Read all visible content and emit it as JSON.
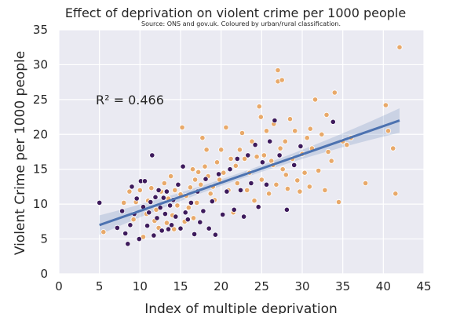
{
  "chart_data": {
    "type": "scatter",
    "title": "Effect of deprivation on violent crime per 1000 people",
    "subtitle": "Source: ONS and gov.uk. Coloured by urban/rural classification.",
    "xlabel": "Index of multiple deprivation",
    "ylabel": "Violent Crime per 1000 people",
    "annotation": "R² = 0.466",
    "xlim": [
      0,
      45
    ],
    "ylim": [
      0,
      35
    ],
    "xticks": [
      "0",
      "5",
      "10",
      "15",
      "20",
      "25",
      "30",
      "35",
      "40",
      "45"
    ],
    "yticks": [
      "0",
      "5",
      "10",
      "15",
      "20",
      "25",
      "30",
      "35"
    ],
    "grid": true,
    "regression": {
      "x": [
        5,
        42
      ],
      "y": [
        7.0,
        22.0
      ]
    },
    "colors": {
      "background": "#eaeaf2",
      "grid": "#ffffff",
      "regression_line": "#4c72b0",
      "confidence_band": "#4c72b0",
      "group_a": "#e8a96a",
      "group_b": "#3d1a5c",
      "marker_edge": "#ffffff"
    },
    "series": [
      {
        "color": "#e8a96a",
        "points": [
          [
            5.5,
            6.0
          ],
          [
            8.0,
            10.2
          ],
          [
            8.7,
            11.8
          ],
          [
            9.2,
            7.8
          ],
          [
            9.5,
            10.3
          ],
          [
            10.0,
            12.0
          ],
          [
            10.4,
            5.3
          ],
          [
            10.8,
            8.6
          ],
          [
            11.0,
            10.5
          ],
          [
            11.4,
            12.3
          ],
          [
            11.8,
            7.6
          ],
          [
            12.0,
            9.2
          ],
          [
            12.3,
            6.6
          ],
          [
            12.6,
            11.8
          ],
          [
            13.0,
            13.0
          ],
          [
            13.3,
            7.3
          ],
          [
            13.5,
            10.8
          ],
          [
            13.8,
            14.0
          ],
          [
            14.0,
            8.4
          ],
          [
            14.3,
            12.0
          ],
          [
            14.6,
            9.8
          ],
          [
            15.0,
            11.4
          ],
          [
            15.2,
            21.0
          ],
          [
            15.5,
            7.5
          ],
          [
            15.7,
            11.2
          ],
          [
            16.0,
            9.5
          ],
          [
            16.2,
            12.4
          ],
          [
            16.5,
            15.0
          ],
          [
            16.8,
            13.5
          ],
          [
            17.0,
            10.2
          ],
          [
            17.2,
            14.6
          ],
          [
            17.5,
            12.8
          ],
          [
            17.7,
            19.5
          ],
          [
            18.0,
            15.4
          ],
          [
            18.2,
            17.8
          ],
          [
            18.4,
            14.0
          ],
          [
            18.7,
            11.5
          ],
          [
            19.0,
            12.5
          ],
          [
            19.2,
            10.6
          ],
          [
            19.5,
            16.0
          ],
          [
            19.8,
            13.5
          ],
          [
            20.0,
            17.8
          ],
          [
            20.3,
            14.5
          ],
          [
            20.6,
            21.0
          ],
          [
            20.9,
            12.0
          ],
          [
            21.2,
            16.5
          ],
          [
            21.5,
            8.8
          ],
          [
            21.8,
            15.5
          ],
          [
            22.0,
            13.0
          ],
          [
            22.3,
            17.8
          ],
          [
            22.6,
            20.2
          ],
          [
            22.9,
            16.5
          ],
          [
            23.2,
            12.0
          ],
          [
            23.5,
            14.5
          ],
          [
            23.8,
            19.0
          ],
          [
            24.1,
            10.5
          ],
          [
            24.4,
            16.8
          ],
          [
            24.7,
            24.0
          ],
          [
            25.0,
            13.5
          ],
          [
            25.3,
            17.0
          ],
          [
            25.6,
            20.5
          ],
          [
            25.9,
            11.5
          ],
          [
            26.2,
            16.2
          ],
          [
            26.5,
            21.5
          ],
          [
            26.8,
            12.8
          ],
          [
            27.0,
            29.2
          ],
          [
            27.0,
            27.6
          ],
          [
            27.5,
            27.8
          ],
          [
            27.3,
            18.0
          ],
          [
            27.6,
            15.0
          ],
          [
            27.9,
            19.0
          ],
          [
            28.2,
            12.2
          ],
          [
            28.5,
            22.2
          ],
          [
            28.8,
            16.5
          ],
          [
            29.1,
            20.5
          ],
          [
            29.4,
            13.4
          ],
          [
            29.7,
            11.8
          ],
          [
            30.0,
            17.2
          ],
          [
            30.3,
            14.5
          ],
          [
            30.6,
            19.5
          ],
          [
            30.9,
            12.5
          ],
          [
            31.2,
            18.0
          ],
          [
            31.6,
            25.0
          ],
          [
            32.0,
            14.8
          ],
          [
            32.4,
            20.0
          ],
          [
            32.8,
            12.0
          ],
          [
            33.2,
            17.5
          ],
          [
            33.6,
            16.2
          ],
          [
            34.0,
            26.0
          ],
          [
            34.5,
            10.3
          ],
          [
            35.0,
            19.0
          ],
          [
            35.5,
            18.5
          ],
          [
            36.0,
            19.5
          ],
          [
            37.8,
            13.0
          ],
          [
            40.3,
            24.2
          ],
          [
            40.6,
            20.5
          ],
          [
            41.2,
            18.0
          ],
          [
            41.5,
            11.5
          ],
          [
            42.0,
            32.5
          ],
          [
            14.2,
            6.4
          ],
          [
            16.6,
            8.0
          ],
          [
            24.9,
            22.5
          ],
          [
            26.4,
            15.6
          ],
          [
            28.0,
            14.2
          ],
          [
            31.0,
            20.8
          ],
          [
            33.0,
            22.8
          ]
        ]
      },
      {
        "color": "#3d1a5c",
        "points": [
          [
            5.0,
            10.2
          ],
          [
            7.2,
            6.6
          ],
          [
            7.8,
            9.0
          ],
          [
            8.2,
            5.8
          ],
          [
            8.5,
            4.3
          ],
          [
            8.8,
            7.0
          ],
          [
            9.0,
            12.5
          ],
          [
            9.3,
            8.6
          ],
          [
            9.6,
            10.8
          ],
          [
            9.9,
            5.0
          ],
          [
            10.1,
            13.3
          ],
          [
            10.4,
            9.6
          ],
          [
            10.6,
            13.3
          ],
          [
            10.9,
            6.9
          ],
          [
            11.1,
            8.8
          ],
          [
            11.3,
            10.3
          ],
          [
            11.5,
            17.0
          ],
          [
            11.7,
            5.5
          ],
          [
            11.9,
            11.0
          ],
          [
            12.1,
            8.0
          ],
          [
            12.3,
            12.0
          ],
          [
            12.5,
            9.5
          ],
          [
            12.7,
            6.2
          ],
          [
            12.9,
            10.9
          ],
          [
            13.1,
            8.6
          ],
          [
            13.3,
            11.8
          ],
          [
            13.5,
            6.4
          ],
          [
            13.7,
            9.8
          ],
          [
            13.9,
            7.0
          ],
          [
            14.1,
            10.6
          ],
          [
            14.4,
            8.2
          ],
          [
            14.7,
            12.8
          ],
          [
            15.0,
            6.5
          ],
          [
            15.3,
            15.4
          ],
          [
            15.6,
            8.8
          ],
          [
            15.9,
            7.8
          ],
          [
            16.3,
            10.2
          ],
          [
            16.7,
            5.7
          ],
          [
            17.1,
            11.8
          ],
          [
            17.4,
            7.4
          ],
          [
            17.8,
            9.0
          ],
          [
            18.1,
            13.6
          ],
          [
            18.5,
            6.5
          ],
          [
            18.9,
            10.4
          ],
          [
            19.3,
            5.6
          ],
          [
            19.7,
            14.3
          ],
          [
            20.2,
            8.5
          ],
          [
            20.7,
            11.8
          ],
          [
            21.1,
            15.0
          ],
          [
            21.6,
            9.2
          ],
          [
            22.0,
            16.5
          ],
          [
            22.4,
            12.0
          ],
          [
            22.8,
            8.2
          ],
          [
            23.3,
            17.0
          ],
          [
            23.7,
            13.0
          ],
          [
            24.2,
            18.5
          ],
          [
            24.6,
            9.6
          ],
          [
            25.1,
            16.0
          ],
          [
            25.6,
            12.8
          ],
          [
            26.0,
            19.0
          ],
          [
            26.6,
            22.0
          ],
          [
            27.2,
            17.0
          ],
          [
            28.1,
            9.2
          ],
          [
            29.0,
            15.6
          ],
          [
            29.8,
            18.3
          ],
          [
            33.8,
            21.8
          ]
        ]
      }
    ]
  }
}
